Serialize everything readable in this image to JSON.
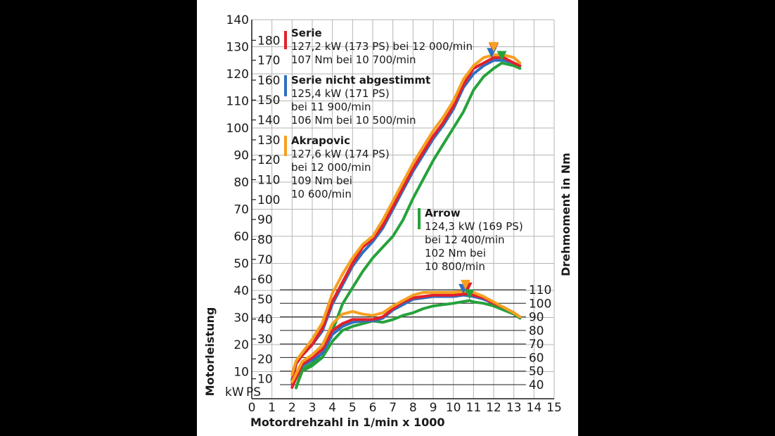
{
  "chart_data": {
    "type": "line",
    "xlabel": "Motordrehzahl in 1/min x 1000",
    "ylabel_left": "Motorleistung",
    "ylabel_right": "Drehmoment in Nm",
    "kw_unit": "kW",
    "ps_unit": "PS",
    "x_ticks": [
      0,
      1,
      2,
      3,
      4,
      5,
      6,
      7,
      8,
      9,
      10,
      11,
      12,
      13,
      14,
      15
    ],
    "xlim": [
      0,
      15
    ],
    "kw_ticks": [
      10,
      20,
      30,
      40,
      50,
      60,
      70,
      80,
      90,
      100,
      110,
      120,
      130,
      140
    ],
    "kw_lim": [
      0,
      140
    ],
    "ps_ticks": [
      10,
      20,
      30,
      40,
      50,
      60,
      70,
      80,
      90,
      100,
      110,
      120,
      130,
      140,
      150,
      160,
      170,
      180
    ],
    "nm_ticks": [
      40,
      50,
      60,
      70,
      80,
      90,
      100,
      110
    ],
    "nm_lim": [
      30,
      115
    ],
    "grid": true,
    "colors": {
      "serie": "#e3202a",
      "nicht": "#2e6fc0",
      "akrapovic": "#f5a020",
      "arrow": "#26a23c"
    },
    "annotations": [
      {
        "key": "serie",
        "lines": [
          "Serie",
          "127,2 kW (173 PS) bei 12 000/min",
          "107 Nm bei 10 700/min"
        ]
      },
      {
        "key": "nicht",
        "lines": [
          "Serie nicht abgestimmt",
          "125,4 kW (171 PS)",
          "bei 11 900/min",
          "106 Nm bei 10 500/min"
        ]
      },
      {
        "key": "akrapovic",
        "lines": [
          "Akrapovic",
          "127,6 kW (174 PS)",
          "bei 12 000/min",
          "109 Nm bei",
          "10 600/min"
        ]
      },
      {
        "key": "arrow",
        "lines": [
          "Arrow",
          "124,3 kW (169 PS)",
          "bei 12 400/min",
          "102 Nm bei",
          "10 800/min"
        ]
      }
    ],
    "series": [
      {
        "key": "serie",
        "quantity": "power_kw",
        "x": [
          2,
          2.2,
          2.5,
          3,
          3.5,
          4,
          4.5,
          5,
          5.5,
          6,
          6.5,
          7,
          7.5,
          8,
          8.5,
          9,
          9.5,
          10,
          10.5,
          11,
          11.5,
          12,
          12.5,
          13,
          13.3
        ],
        "y": [
          6,
          13,
          16,
          20,
          26,
          36,
          43,
          50,
          56,
          59,
          64,
          71,
          78,
          85,
          91,
          97,
          102,
          108,
          116,
          122,
          124,
          126,
          126,
          124,
          123
        ]
      },
      {
        "key": "nicht",
        "quantity": "power_kw",
        "x": [
          2,
          2.2,
          2.5,
          3,
          3.5,
          4,
          4.5,
          5,
          5.5,
          6,
          6.5,
          7,
          7.5,
          8,
          8.5,
          9,
          9.5,
          10,
          10.5,
          11,
          11.5,
          12,
          12.5,
          13,
          13.3
        ],
        "y": [
          7,
          13,
          16,
          20,
          25,
          35,
          42,
          49,
          54,
          58,
          63,
          70,
          77,
          84,
          90,
          96,
          101,
          107,
          115,
          120,
          123,
          125,
          125,
          124,
          123
        ]
      },
      {
        "key": "akrapovic",
        "quantity": "power_kw",
        "x": [
          2,
          2.2,
          2.5,
          3,
          3.5,
          4,
          4.5,
          5,
          5.5,
          6,
          6.5,
          7,
          7.5,
          8,
          8.5,
          9,
          9.5,
          10,
          10.5,
          11,
          11.5,
          12,
          12.5,
          13,
          13.3
        ],
        "y": [
          9,
          14,
          17,
          22,
          28,
          39,
          46,
          52,
          57,
          60,
          66,
          73,
          80,
          87,
          93,
          99,
          104,
          110,
          118,
          123,
          126,
          127,
          127,
          126,
          124
        ]
      },
      {
        "key": "arrow",
        "quantity": "power_kw",
        "x": [
          2.2,
          2.5,
          3,
          3.5,
          4,
          4.5,
          5,
          5.5,
          6,
          6.5,
          7,
          7.5,
          8,
          8.5,
          9,
          9.5,
          10,
          10.5,
          11,
          11.5,
          12,
          12.4,
          13,
          13.3
        ],
        "y": [
          4,
          11,
          13,
          17,
          25,
          35,
          41,
          47,
          52,
          56,
          60,
          66,
          74,
          81,
          88,
          94,
          100,
          106,
          114,
          119,
          122,
          124,
          123,
          122
        ]
      },
      {
        "key": "serie",
        "quantity": "torque_nm",
        "x": [
          2,
          2.5,
          3,
          3.5,
          4,
          4.5,
          5,
          5.5,
          6,
          6.5,
          7,
          7.5,
          8,
          8.5,
          9,
          9.5,
          10,
          10.7,
          11,
          11.5,
          12,
          12.5,
          13,
          13.3
        ],
        "y": [
          38,
          55,
          60,
          66,
          80,
          85,
          88,
          88,
          88,
          90,
          96,
          101,
          104,
          105,
          106,
          106,
          106,
          107,
          106,
          104,
          100,
          97,
          93,
          90
        ]
      },
      {
        "key": "nicht",
        "quantity": "torque_nm",
        "x": [
          2,
          2.5,
          3,
          3.5,
          4,
          4.5,
          5,
          5.5,
          6,
          6.5,
          7,
          7.5,
          8,
          8.5,
          9,
          9.5,
          10,
          10.5,
          11,
          11.5,
          12,
          12.5,
          13,
          13.3
        ],
        "y": [
          40,
          54,
          58,
          63,
          77,
          83,
          86,
          87,
          87,
          89,
          95,
          99,
          103,
          104,
          105,
          105,
          105,
          106,
          105,
          103,
          100,
          97,
          93,
          90
        ]
      },
      {
        "key": "akrapovic",
        "quantity": "torque_nm",
        "x": [
          2,
          2.5,
          3,
          3.5,
          4,
          4.5,
          5,
          5.5,
          6,
          6.5,
          7,
          7.5,
          8,
          8.5,
          9,
          9.5,
          10,
          10.6,
          11,
          11.5,
          12,
          12.5,
          13,
          13.3
        ],
        "y": [
          42,
          57,
          62,
          69,
          85,
          92,
          94,
          92,
          91,
          93,
          98,
          102,
          106,
          108,
          108,
          108,
          108,
          109,
          108,
          105,
          101,
          97,
          93,
          90
        ]
      },
      {
        "key": "arrow",
        "quantity": "torque_nm",
        "x": [
          2.2,
          2.5,
          3,
          3.5,
          4,
          4.5,
          5,
          5.5,
          6,
          6.5,
          7,
          7.5,
          8,
          8.5,
          9,
          9.5,
          10,
          10.8,
          11,
          11.5,
          12,
          12.5,
          13,
          13.3
        ],
        "y": [
          38,
          50,
          54,
          60,
          72,
          80,
          83,
          85,
          87,
          86,
          88,
          91,
          93,
          96,
          98,
          99,
          100,
          102,
          101,
          100,
          98,
          95,
          92,
          89
        ]
      }
    ],
    "markers": [
      {
        "key": "serie",
        "quantity": "power_kw",
        "x": 12.0,
        "y": 127.2
      },
      {
        "key": "nicht",
        "quantity": "power_kw",
        "x": 11.9,
        "y": 125.4
      },
      {
        "key": "akrapovic",
        "quantity": "power_kw",
        "x": 12.0,
        "y": 127.6
      },
      {
        "key": "arrow",
        "quantity": "power_kw",
        "x": 12.4,
        "y": 124.3
      },
      {
        "key": "serie",
        "quantity": "torque_nm",
        "x": 10.7,
        "y": 107
      },
      {
        "key": "nicht",
        "quantity": "torque_nm",
        "x": 10.5,
        "y": 106
      },
      {
        "key": "akrapovic",
        "quantity": "torque_nm",
        "x": 10.6,
        "y": 109
      },
      {
        "key": "arrow",
        "quantity": "torque_nm",
        "x": 10.8,
        "y": 102
      }
    ]
  }
}
